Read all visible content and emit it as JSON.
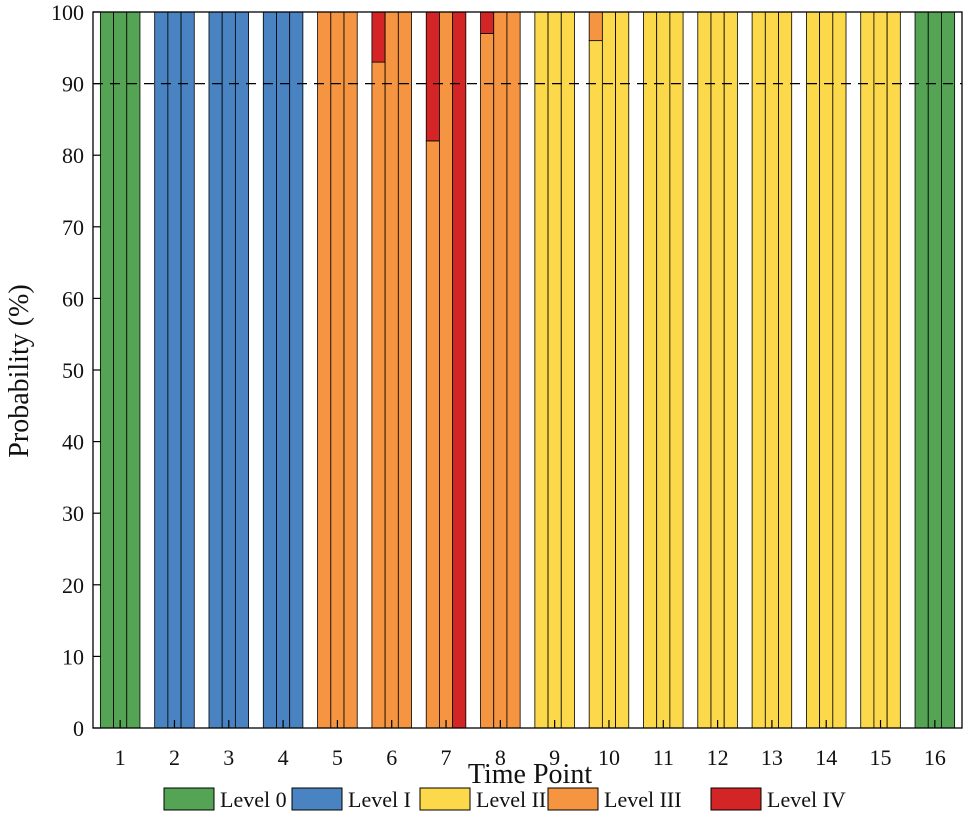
{
  "chart_data": {
    "type": "bar",
    "stacked": true,
    "bars_per_category": 3,
    "xlabel": "Time Point",
    "ylabel": "Probability (%)",
    "ylim": [
      0,
      100
    ],
    "yticks": [
      0,
      10,
      20,
      30,
      40,
      50,
      60,
      70,
      80,
      90,
      100
    ],
    "categories": [
      "1",
      "2",
      "3",
      "4",
      "5",
      "6",
      "7",
      "8",
      "9",
      "10",
      "11",
      "12",
      "13",
      "14",
      "15",
      "16"
    ],
    "threshold": {
      "value": 90,
      "style": "dashed"
    },
    "grid": false,
    "legend_position": "bottom",
    "series": [
      {
        "name": "Level 0",
        "color": "#55a354",
        "values": [
          [
            100,
            100,
            100
          ],
          [
            0,
            0,
            0
          ],
          [
            0,
            0,
            0
          ],
          [
            0,
            0,
            0
          ],
          [
            0,
            0,
            0
          ],
          [
            0,
            0,
            0
          ],
          [
            0,
            0,
            0
          ],
          [
            0,
            0,
            0
          ],
          [
            0,
            0,
            0
          ],
          [
            0,
            0,
            0
          ],
          [
            0,
            0,
            0
          ],
          [
            0,
            0,
            0
          ],
          [
            0,
            0,
            0
          ],
          [
            0,
            0,
            0
          ],
          [
            0,
            0,
            0
          ],
          [
            100,
            100,
            100
          ]
        ]
      },
      {
        "name": "Level I",
        "color": "#4a83c1",
        "values": [
          [
            0,
            0,
            0
          ],
          [
            100,
            100,
            100
          ],
          [
            100,
            100,
            100
          ],
          [
            100,
            100,
            100
          ],
          [
            0,
            0,
            0
          ],
          [
            0,
            0,
            0
          ],
          [
            0,
            0,
            0
          ],
          [
            0,
            0,
            0
          ],
          [
            0,
            0,
            0
          ],
          [
            0,
            0,
            0
          ],
          [
            0,
            0,
            0
          ],
          [
            0,
            0,
            0
          ],
          [
            0,
            0,
            0
          ],
          [
            0,
            0,
            0
          ],
          [
            0,
            0,
            0
          ],
          [
            0,
            0,
            0
          ]
        ]
      },
      {
        "name": "Level II",
        "color": "#fcd94a",
        "values": [
          [
            0,
            0,
            0
          ],
          [
            0,
            0,
            0
          ],
          [
            0,
            0,
            0
          ],
          [
            0,
            0,
            0
          ],
          [
            0,
            0,
            0
          ],
          [
            0,
            0,
            0
          ],
          [
            0,
            0,
            0
          ],
          [
            0,
            0,
            0
          ],
          [
            100,
            100,
            100
          ],
          [
            96,
            100,
            100
          ],
          [
            100,
            100,
            100
          ],
          [
            100,
            100,
            100
          ],
          [
            100,
            100,
            100
          ],
          [
            100,
            100,
            100
          ],
          [
            100,
            100,
            100
          ],
          [
            0,
            0,
            0
          ]
        ]
      },
      {
        "name": "Level III",
        "color": "#f59441",
        "values": [
          [
            0,
            0,
            0
          ],
          [
            0,
            0,
            0
          ],
          [
            0,
            0,
            0
          ],
          [
            0,
            0,
            0
          ],
          [
            100,
            100,
            100
          ],
          [
            93,
            100,
            100
          ],
          [
            82,
            100,
            0
          ],
          [
            97,
            100,
            100
          ],
          [
            0,
            0,
            0
          ],
          [
            4,
            0,
            0
          ],
          [
            0,
            0,
            0
          ],
          [
            0,
            0,
            0
          ],
          [
            0,
            0,
            0
          ],
          [
            0,
            0,
            0
          ],
          [
            0,
            0,
            0
          ],
          [
            0,
            0,
            0
          ]
        ]
      },
      {
        "name": "Level IV",
        "color": "#d42526",
        "values": [
          [
            0,
            0,
            0
          ],
          [
            0,
            0,
            0
          ],
          [
            0,
            0,
            0
          ],
          [
            0,
            0,
            0
          ],
          [
            0,
            0,
            0
          ],
          [
            7,
            0,
            0
          ],
          [
            18,
            0,
            100
          ],
          [
            3,
            0,
            0
          ],
          [
            0,
            0,
            0
          ],
          [
            0,
            0,
            0
          ],
          [
            0,
            0,
            0
          ],
          [
            0,
            0,
            0
          ],
          [
            0,
            0,
            0
          ],
          [
            0,
            0,
            0
          ],
          [
            0,
            0,
            0
          ],
          [
            0,
            0,
            0
          ]
        ]
      }
    ]
  }
}
